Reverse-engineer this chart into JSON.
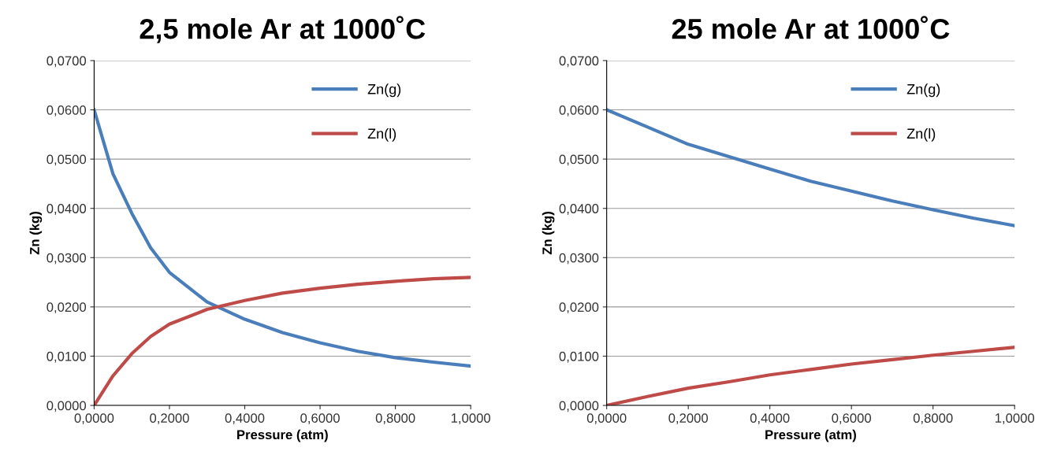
{
  "chart_data": [
    {
      "type": "line",
      "title": "2,5 mole Ar at 1000˚C",
      "xlabel": "Pressure (atm)",
      "ylabel": "Zn (kg)",
      "grid": "y",
      "legend": "top right",
      "xlim": [
        0,
        1
      ],
      "ylim": [
        0,
        0.07
      ],
      "xticks": [
        {
          "value": 0,
          "label": "0,0000"
        },
        {
          "value": 0.2,
          "label": "0,2000"
        },
        {
          "value": 0.4,
          "label": "0,4000"
        },
        {
          "value": 0.6,
          "label": "0,6000"
        },
        {
          "value": 0.8,
          "label": "0,8000"
        },
        {
          "value": 1,
          "label": "1,0000"
        }
      ],
      "yticks": [
        {
          "value": 0,
          "label": "0,0000"
        },
        {
          "value": 0.01,
          "label": "0,0100"
        },
        {
          "value": 0.02,
          "label": "0,0200"
        },
        {
          "value": 0.03,
          "label": "0,0300"
        },
        {
          "value": 0.04,
          "label": "0,0400"
        },
        {
          "value": 0.05,
          "label": "0,0500"
        },
        {
          "value": 0.06,
          "label": "0,0600"
        },
        {
          "value": 0.07,
          "label": "0,0700"
        }
      ],
      "x": [
        0,
        0.05,
        0.1,
        0.15,
        0.2,
        0.3,
        0.4,
        0.5,
        0.6,
        0.7,
        0.8,
        0.9,
        1.0
      ],
      "series": [
        {
          "name": "Zn(g)",
          "color": "#4a7ebb",
          "values": [
            0.06,
            0.047,
            0.039,
            0.032,
            0.027,
            0.021,
            0.0175,
            0.0148,
            0.0127,
            0.011,
            0.0097,
            0.0088,
            0.008
          ]
        },
        {
          "name": "Zn(l)",
          "color": "#be4b48",
          "values": [
            0,
            0.006,
            0.0105,
            0.014,
            0.0165,
            0.0195,
            0.0213,
            0.0228,
            0.0238,
            0.0246,
            0.0252,
            0.0257,
            0.026
          ]
        }
      ]
    },
    {
      "type": "line",
      "title": "25 mole Ar at 1000˚C",
      "xlabel": "Pressure (atm)",
      "ylabel": "Zn (kg)",
      "grid": "y",
      "legend": "top right",
      "xlim": [
        0,
        1
      ],
      "ylim": [
        0,
        0.07
      ],
      "xticks": [
        {
          "value": 0,
          "label": "0,0000"
        },
        {
          "value": 0.2,
          "label": "0,2000"
        },
        {
          "value": 0.4,
          "label": "0,4000"
        },
        {
          "value": 0.6,
          "label": "0,6000"
        },
        {
          "value": 0.8,
          "label": "0,8000"
        },
        {
          "value": 1,
          "label": "1,0000"
        }
      ],
      "yticks": [
        {
          "value": 0,
          "label": "0,0000"
        },
        {
          "value": 0.01,
          "label": "0,0100"
        },
        {
          "value": 0.02,
          "label": "0,0200"
        },
        {
          "value": 0.03,
          "label": "0,0300"
        },
        {
          "value": 0.04,
          "label": "0,0400"
        },
        {
          "value": 0.05,
          "label": "0,0500"
        },
        {
          "value": 0.06,
          "label": "0,0600"
        },
        {
          "value": 0.07,
          "label": "0,0700"
        }
      ],
      "x": [
        0,
        0.1,
        0.2,
        0.3,
        0.4,
        0.5,
        0.6,
        0.7,
        0.8,
        0.9,
        1.0
      ],
      "series": [
        {
          "name": "Zn(g)",
          "color": "#4a7ebb",
          "values": [
            0.06,
            0.0565,
            0.053,
            0.0505,
            0.048,
            0.0455,
            0.0435,
            0.0415,
            0.0397,
            0.038,
            0.0365
          ]
        },
        {
          "name": "Zn(l)",
          "color": "#be4b48",
          "values": [
            0,
            0.0018,
            0.0035,
            0.0048,
            0.0062,
            0.0073,
            0.0084,
            0.0093,
            0.0102,
            0.011,
            0.0118
          ]
        }
      ]
    }
  ]
}
